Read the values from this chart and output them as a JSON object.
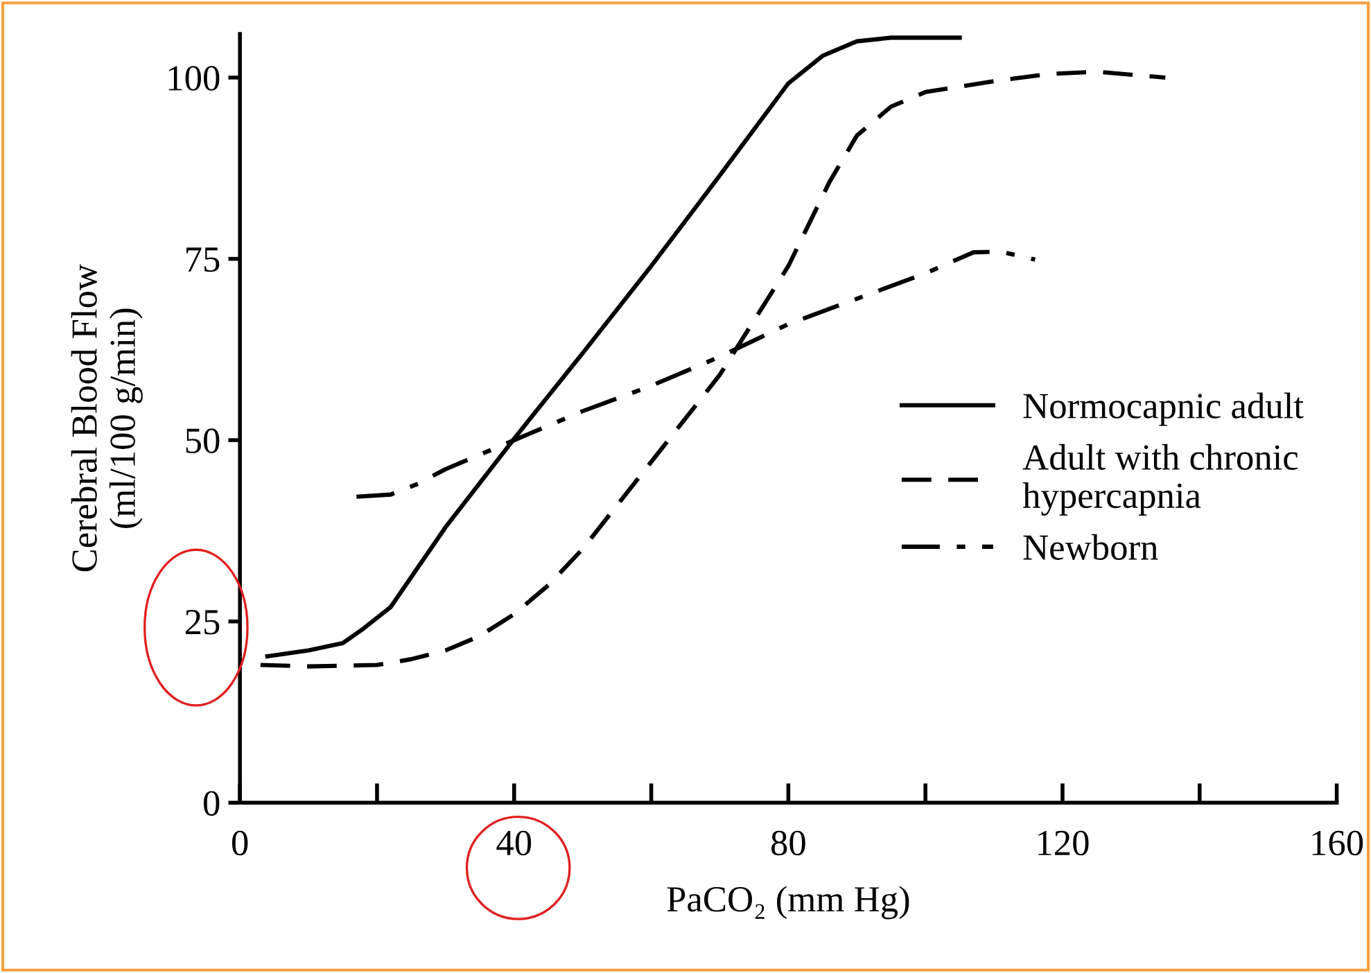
{
  "chart_data": {
    "type": "line",
    "xlabel": "PaCO₂ (mm Hg)",
    "ylabel": "Cerebral Blood Flow\n(ml/100 g/min)",
    "xlim": [
      0,
      160
    ],
    "ylim": [
      0,
      106
    ],
    "xticks": [
      0,
      {
        "value": 20,
        "label": null
      },
      40,
      {
        "value": 60,
        "label": null
      },
      80,
      {
        "value": 100,
        "label": null
      },
      120,
      {
        "value": 140,
        "label": null
      },
      160
    ],
    "yticks": [
      0,
      25,
      50,
      75,
      100
    ],
    "grid": false,
    "legend": "right",
    "marker": "none",
    "series": [
      {
        "name": "Normocapnic adult",
        "color": "#000000",
        "line_style": "solid",
        "x": [
          4,
          10,
          15,
          18,
          22,
          30,
          40,
          50,
          60,
          70,
          80,
          85,
          90,
          95,
          105
        ],
        "values": [
          20.2,
          21,
          22,
          24,
          27,
          38,
          50.2,
          62,
          74,
          86.5,
          99.2,
          103,
          105,
          105.5,
          105.5
        ]
      },
      {
        "name": "Adult with chronic\nhypercapnia",
        "color": "#000000",
        "line_style": "dashed",
        "x": [
          3,
          10,
          20,
          25,
          30,
          35,
          40,
          45,
          50,
          60,
          70,
          80,
          86,
          90,
          95,
          100,
          110,
          118,
          125,
          135
        ],
        "values": [
          19,
          18.8,
          19,
          19.8,
          21,
          23,
          26,
          30,
          35,
          47,
          59,
          74,
          85.6,
          92,
          96,
          98,
          99.5,
          100.5,
          100.8,
          100
        ]
      },
      {
        "name": "Newborn",
        "color": "#000000",
        "line_style": "dashdot",
        "x": [
          17,
          22,
          26,
          30,
          35,
          40,
          50,
          60,
          70,
          80,
          90,
          100,
          107,
          111,
          116
        ],
        "values": [
          42.2,
          42.5,
          44,
          46,
          48,
          50,
          54,
          57.5,
          61.5,
          66,
          69.5,
          73,
          75.9,
          76,
          74.9
        ]
      }
    ]
  }
}
